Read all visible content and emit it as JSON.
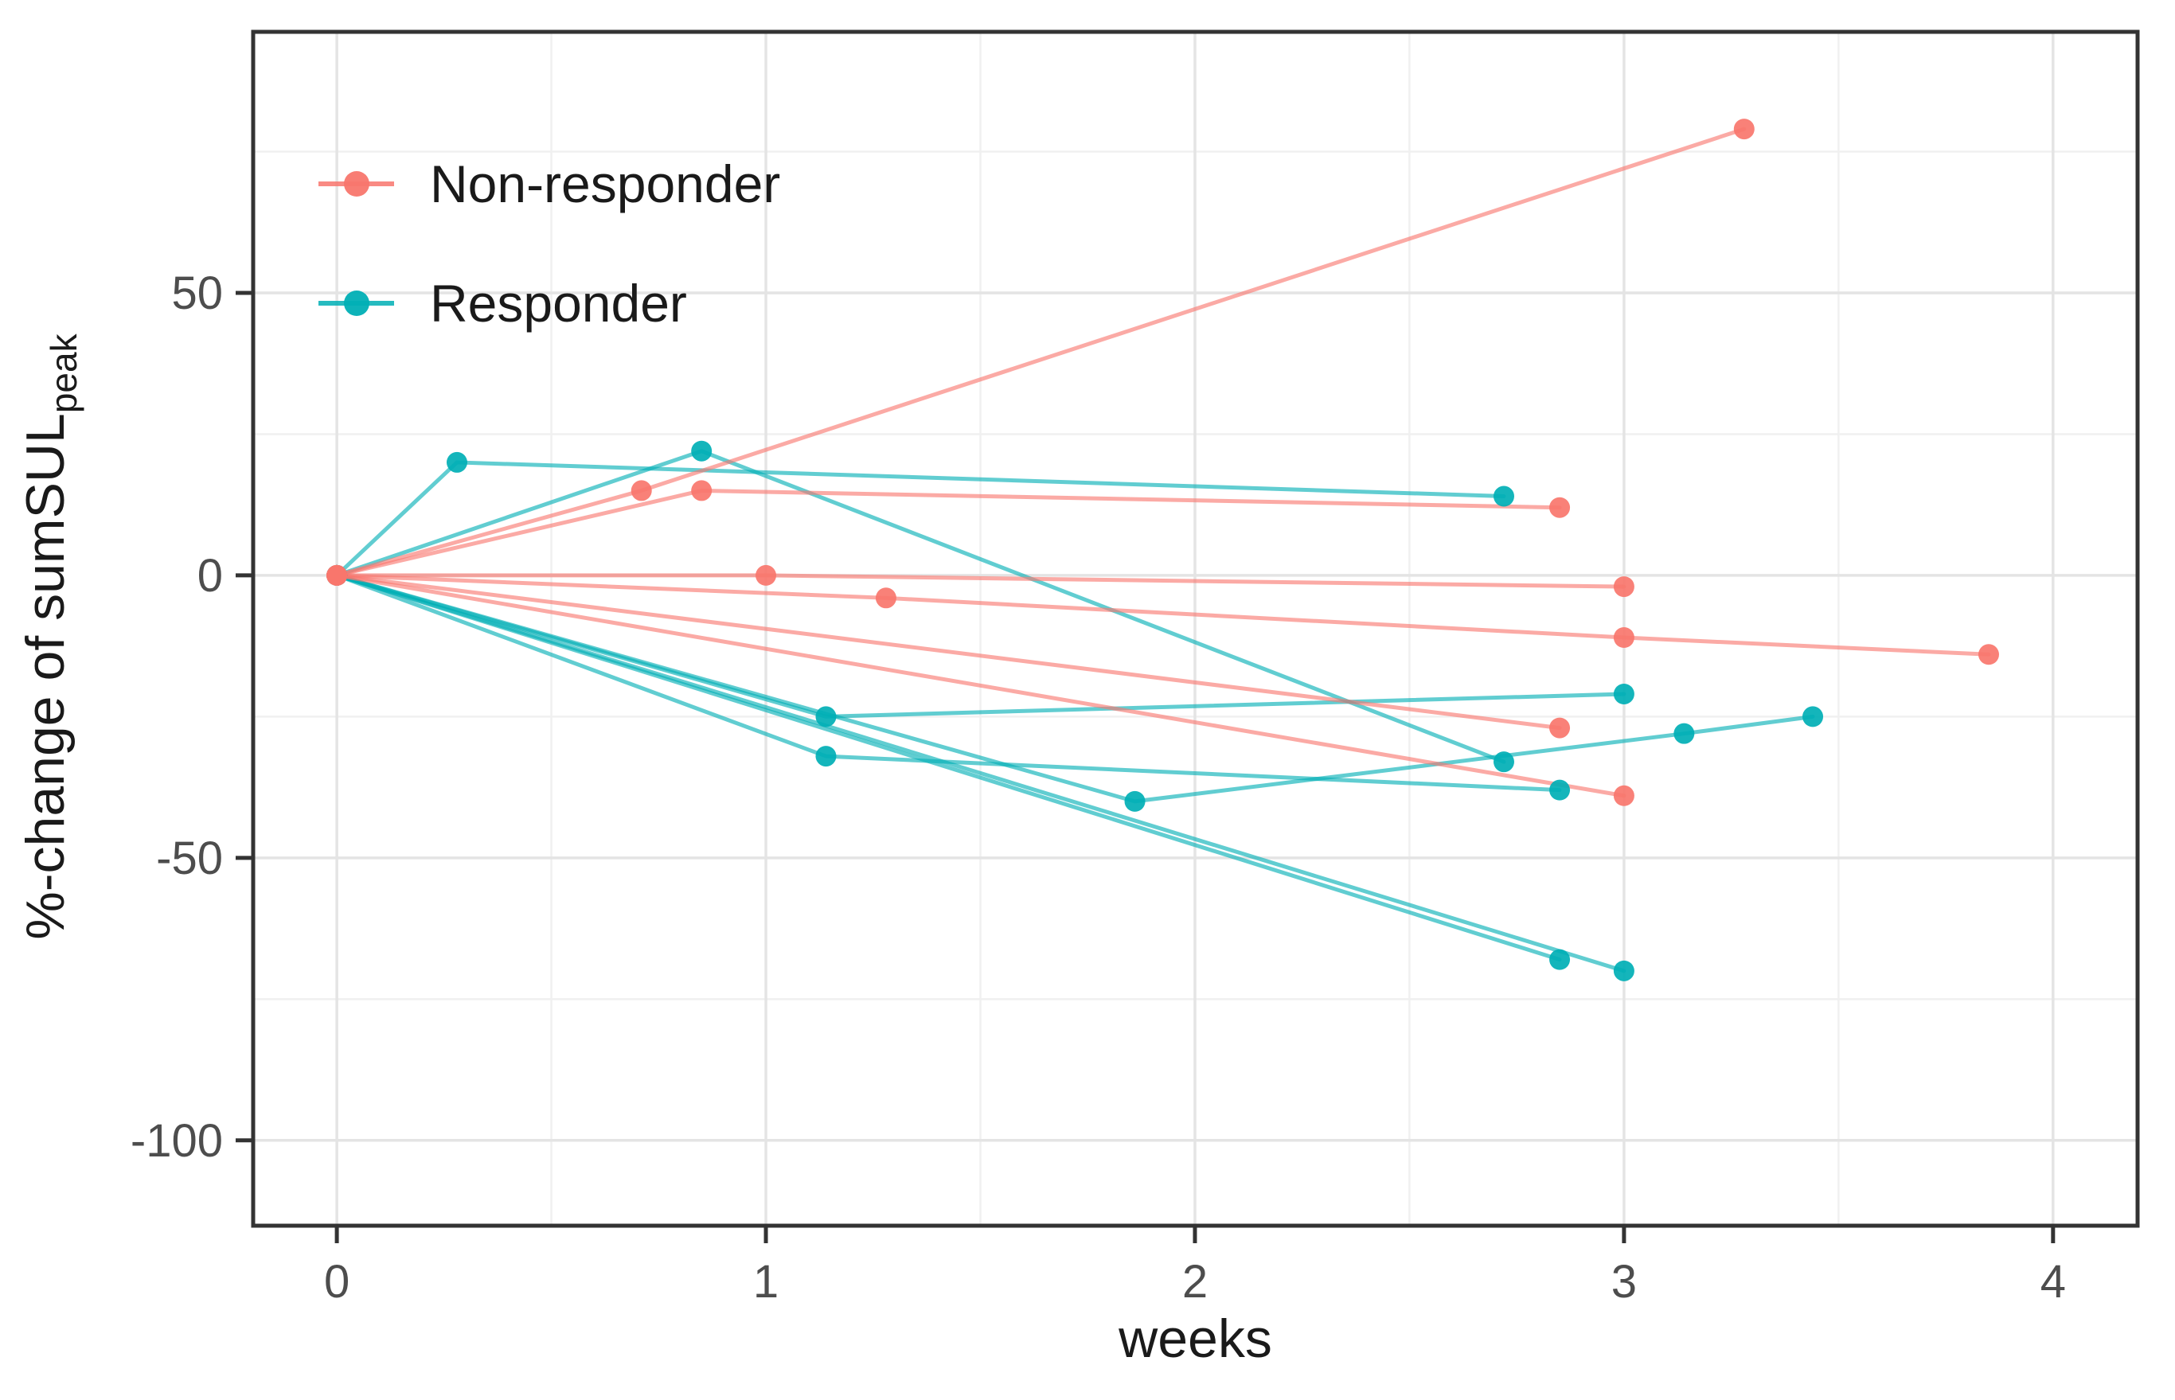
{
  "figure": {
    "background": "#FFFFFF",
    "description": "Spaghetti line plot of percent change of sumSULpeak over weeks for responder and non-responder patients"
  },
  "chart_data": {
    "type": "line",
    "title": "",
    "xlabel": "weeks",
    "ylabel": "%-change of sumSUL",
    "ylabel_subscript": "peak",
    "x_ticks": [
      0,
      1,
      2,
      3,
      4
    ],
    "y_ticks": [
      50,
      0,
      -50,
      -100
    ],
    "x_minor_gridlines": [
      0.5,
      1.5,
      2.5,
      3.5
    ],
    "y_minor_gridlines": [
      75,
      25,
      -25,
      -75
    ],
    "xlim": [
      -0.195,
      4.197
    ],
    "ylim": [
      -115.1,
      96.2
    ],
    "grid": true,
    "panel_border_color": "#333333",
    "major_grid_color": "#E4E4E4",
    "minor_grid_color": "#F0F0F0",
    "tick_color": "#333333",
    "tick_label_color": "#4D4D4D",
    "axis_title_color": "#1A1A1A",
    "legend": {
      "position": "top-left-inside",
      "entries": [
        {
          "label": "Non-responder",
          "color": "#F8766D"
        },
        {
          "label": "Responder",
          "color": "#00AFB5"
        }
      ]
    },
    "groups": [
      {
        "name": "Responder",
        "color": "#00AFB5",
        "series": [
          {
            "id": "R-1",
            "points": [
              [
                0,
                0
              ],
              [
                0.28,
                20
              ],
              [
                2.72,
                14
              ]
            ]
          },
          {
            "id": "R-2",
            "points": [
              [
                0,
                0
              ],
              [
                0.85,
                22
              ],
              [
                2.72,
                -33
              ]
            ]
          },
          {
            "id": "R-3",
            "points": [
              [
                0,
                0
              ],
              [
                1.14,
                -25
              ],
              [
                3.0,
                -21
              ]
            ]
          },
          {
            "id": "R-4",
            "points": [
              [
                0,
                0
              ],
              [
                1.14,
                -32
              ],
              [
                2.85,
                -38
              ]
            ]
          },
          {
            "id": "R-5",
            "points": [
              [
                0,
                0
              ],
              [
                1.86,
                -40
              ],
              [
                3.14,
                -28
              ],
              [
                3.44,
                -25
              ]
            ]
          },
          {
            "id": "R-6",
            "points": [
              [
                0,
                0
              ],
              [
                2.85,
                -68
              ]
            ]
          },
          {
            "id": "R-7",
            "points": [
              [
                0,
                0
              ],
              [
                3.0,
                -70
              ]
            ]
          }
        ]
      },
      {
        "name": "Non-responder",
        "color": "#F8766D",
        "series": [
          {
            "id": "NR-1",
            "points": [
              [
                0,
                0
              ],
              [
                0.71,
                15
              ],
              [
                3.28,
                79
              ]
            ]
          },
          {
            "id": "NR-2",
            "points": [
              [
                0,
                0
              ],
              [
                0.85,
                15
              ],
              [
                2.85,
                12
              ]
            ]
          },
          {
            "id": "NR-3",
            "points": [
              [
                0,
                0
              ],
              [
                1.0,
                0
              ],
              [
                3.0,
                -2
              ]
            ]
          },
          {
            "id": "NR-4",
            "points": [
              [
                0,
                0
              ],
              [
                1.28,
                -4
              ],
              [
                3.0,
                -11
              ],
              [
                3.85,
                -14
              ]
            ]
          },
          {
            "id": "NR-5",
            "points": [
              [
                0,
                0
              ],
              [
                2.85,
                -27
              ]
            ]
          },
          {
            "id": "NR-6",
            "points": [
              [
                0,
                0
              ],
              [
                3.0,
                -39
              ]
            ]
          }
        ]
      }
    ]
  }
}
